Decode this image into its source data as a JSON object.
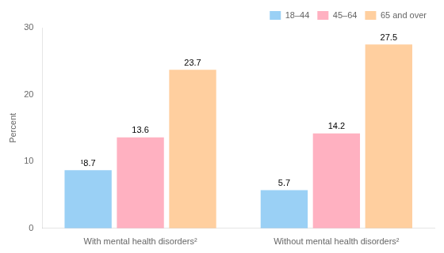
{
  "chart_data": {
    "type": "bar",
    "categories": [
      "With mental health disorders²",
      "Without mental health disorders²"
    ],
    "series": [
      {
        "name": "18–44",
        "values": [
          8.7,
          5.7
        ],
        "value_labels": [
          "¹8.7",
          "5.7"
        ]
      },
      {
        "name": "45–64",
        "values": [
          13.6,
          14.2
        ],
        "value_labels": [
          "13.6",
          "14.2"
        ]
      },
      {
        "name": "65 and over",
        "values": [
          23.7,
          27.5
        ],
        "value_labels": [
          "23.7",
          "27.5"
        ]
      }
    ],
    "ylabel": "Percent",
    "ylim": [
      0,
      30
    ],
    "yticks": [
      0,
      10,
      20,
      30
    ],
    "grid": false,
    "legend": "upper right",
    "data_labels": true
  }
}
